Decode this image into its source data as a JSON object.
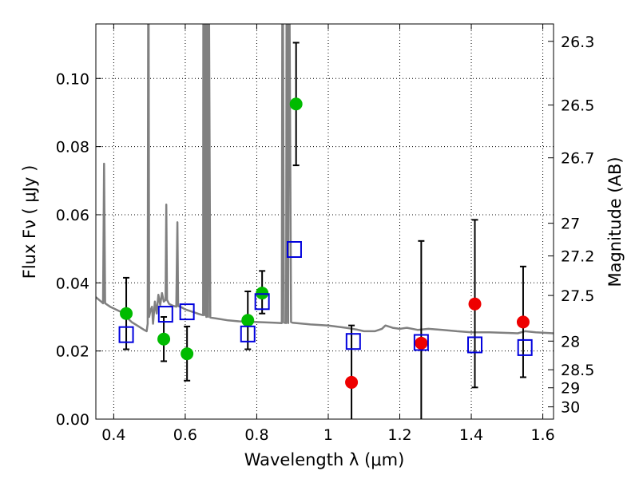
{
  "chart_data": {
    "type": "scatter",
    "xlabel": "Wavelength  λ (μm)",
    "ylabel": "Flux  Fν  ( μJy )",
    "ylabel_right": "Magnitude (AB)",
    "xlim": [
      0.35,
      1.63
    ],
    "ylim": [
      0.0,
      0.116
    ],
    "grid": true,
    "x_ticks": [
      0.4,
      0.6,
      0.8,
      1.0,
      1.2,
      1.4,
      1.6
    ],
    "x_tick_labels": [
      "0.4",
      "0.6",
      "0.8",
      "1",
      "1.2",
      "1.4",
      "1.6"
    ],
    "y_ticks": [
      0.0,
      0.02,
      0.04,
      0.06,
      0.08,
      0.1
    ],
    "y_tick_labels": [
      "0.00",
      "0.02",
      "0.04",
      "0.06",
      "0.08",
      "0.10"
    ],
    "mag_ticks": [
      {
        "flux": 0.1109,
        "label": "26.3"
      },
      {
        "flux": 0.0922,
        "label": "26.5"
      },
      {
        "flux": 0.0767,
        "label": "26.7"
      },
      {
        "flux": 0.0575,
        "label": "27"
      },
      {
        "flux": 0.0479,
        "label": "27.2"
      },
      {
        "flux": 0.0363,
        "label": "27.5"
      },
      {
        "flux": 0.0229,
        "label": "28"
      },
      {
        "flux": 0.0145,
        "label": "28.5"
      },
      {
        "flux": 0.0092,
        "label": "29"
      },
      {
        "flux": 0.0036,
        "label": "30"
      }
    ],
    "colors": {
      "green": "#00bb00",
      "red": "#ee0000",
      "blue": "#0000dd",
      "model": "#808080",
      "errorbar": "#000000"
    },
    "points_green": [
      {
        "x": 0.435,
        "y": 0.031,
        "lo": 0.0205,
        "hi": 0.0415
      },
      {
        "x": 0.54,
        "y": 0.0235,
        "lo": 0.017,
        "hi": 0.03
      },
      {
        "x": 0.605,
        "y": 0.0192,
        "lo": 0.0113,
        "hi": 0.0272
      },
      {
        "x": 0.775,
        "y": 0.029,
        "lo": 0.0205,
        "hi": 0.0375
      },
      {
        "x": 0.815,
        "y": 0.037,
        "lo": 0.031,
        "hi": 0.0435
      },
      {
        "x": 0.91,
        "y": 0.0925,
        "lo": 0.0745,
        "hi": 0.1105
      }
    ],
    "points_red": [
      {
        "x": 1.065,
        "y": 0.0108,
        "lo": 0.0,
        "hi": 0.0275
      },
      {
        "x": 1.26,
        "y": 0.0223,
        "lo": 0.0,
        "hi": 0.0523
      },
      {
        "x": 1.41,
        "y": 0.0338,
        "lo": 0.0093,
        "hi": 0.0585
      },
      {
        "x": 1.545,
        "y": 0.0285,
        "lo": 0.0123,
        "hi": 0.0448
      }
    ],
    "model_photometry": [
      {
        "x": 0.435,
        "y": 0.0248
      },
      {
        "x": 0.545,
        "y": 0.0308
      },
      {
        "x": 0.605,
        "y": 0.0315
      },
      {
        "x": 0.775,
        "y": 0.025
      },
      {
        "x": 0.815,
        "y": 0.0345
      },
      {
        "x": 0.905,
        "y": 0.0498
      },
      {
        "x": 1.07,
        "y": 0.0228
      },
      {
        "x": 1.26,
        "y": 0.0225
      },
      {
        "x": 1.41,
        "y": 0.0218
      },
      {
        "x": 1.55,
        "y": 0.021
      }
    ],
    "model_spectrum": [
      [
        0.35,
        0.0358
      ],
      [
        0.365,
        0.0345
      ],
      [
        0.37,
        0.034
      ],
      [
        0.373,
        0.075
      ],
      [
        0.376,
        0.034
      ],
      [
        0.39,
        0.033
      ],
      [
        0.42,
        0.0315
      ],
      [
        0.45,
        0.0285
      ],
      [
        0.47,
        0.0272
      ],
      [
        0.485,
        0.0262
      ],
      [
        0.492,
        0.0258
      ],
      [
        0.495,
        0.028
      ],
      [
        0.497,
        0.16
      ],
      [
        0.499,
        0.03
      ],
      [
        0.503,
        0.032
      ],
      [
        0.507,
        0.033
      ],
      [
        0.51,
        0.028
      ],
      [
        0.515,
        0.0345
      ],
      [
        0.52,
        0.031
      ],
      [
        0.525,
        0.0365
      ],
      [
        0.53,
        0.0335
      ],
      [
        0.535,
        0.037
      ],
      [
        0.54,
        0.0345
      ],
      [
        0.545,
        0.035
      ],
      [
        0.547,
        0.063
      ],
      [
        0.549,
        0.035
      ],
      [
        0.555,
        0.0338
      ],
      [
        0.565,
        0.0333
      ],
      [
        0.575,
        0.033
      ],
      [
        0.578,
        0.0578
      ],
      [
        0.58,
        0.0332
      ],
      [
        0.59,
        0.0328
      ],
      [
        0.6,
        0.0322
      ],
      [
        0.62,
        0.0315
      ],
      [
        0.64,
        0.0308
      ],
      [
        0.65,
        0.0305
      ],
      [
        0.651,
        0.16
      ],
      [
        0.655,
        0.0305
      ],
      [
        0.656,
        0.16
      ],
      [
        0.659,
        0.03
      ],
      [
        0.66,
        0.16
      ],
      [
        0.664,
        0.03
      ],
      [
        0.665,
        0.16
      ],
      [
        0.67,
        0.0298
      ],
      [
        0.69,
        0.0295
      ],
      [
        0.72,
        0.029
      ],
      [
        0.75,
        0.0287
      ],
      [
        0.8,
        0.0285
      ],
      [
        0.85,
        0.0283
      ],
      [
        0.87,
        0.0282
      ],
      [
        0.872,
        0.16
      ],
      [
        0.876,
        0.0283
      ],
      [
        0.882,
        0.0282
      ],
      [
        0.884,
        0.16
      ],
      [
        0.888,
        0.0282
      ],
      [
        0.89,
        0.16
      ],
      [
        0.896,
        0.0285
      ],
      [
        0.9,
        0.0283
      ],
      [
        0.95,
        0.0278
      ],
      [
        1.0,
        0.0275
      ],
      [
        1.05,
        0.0268
      ],
      [
        1.08,
        0.0263
      ],
      [
        1.1,
        0.0258
      ],
      [
        1.13,
        0.0258
      ],
      [
        1.15,
        0.0265
      ],
      [
        1.16,
        0.0275
      ],
      [
        1.18,
        0.0268
      ],
      [
        1.2,
        0.0265
      ],
      [
        1.22,
        0.0268
      ],
      [
        1.25,
        0.0262
      ],
      [
        1.28,
        0.0265
      ],
      [
        1.32,
        0.0262
      ],
      [
        1.36,
        0.0258
      ],
      [
        1.4,
        0.0255
      ],
      [
        1.45,
        0.0255
      ],
      [
        1.5,
        0.0253
      ],
      [
        1.53,
        0.0252
      ],
      [
        1.55,
        0.0258
      ],
      [
        1.58,
        0.0255
      ],
      [
        1.63,
        0.0252
      ]
    ]
  }
}
